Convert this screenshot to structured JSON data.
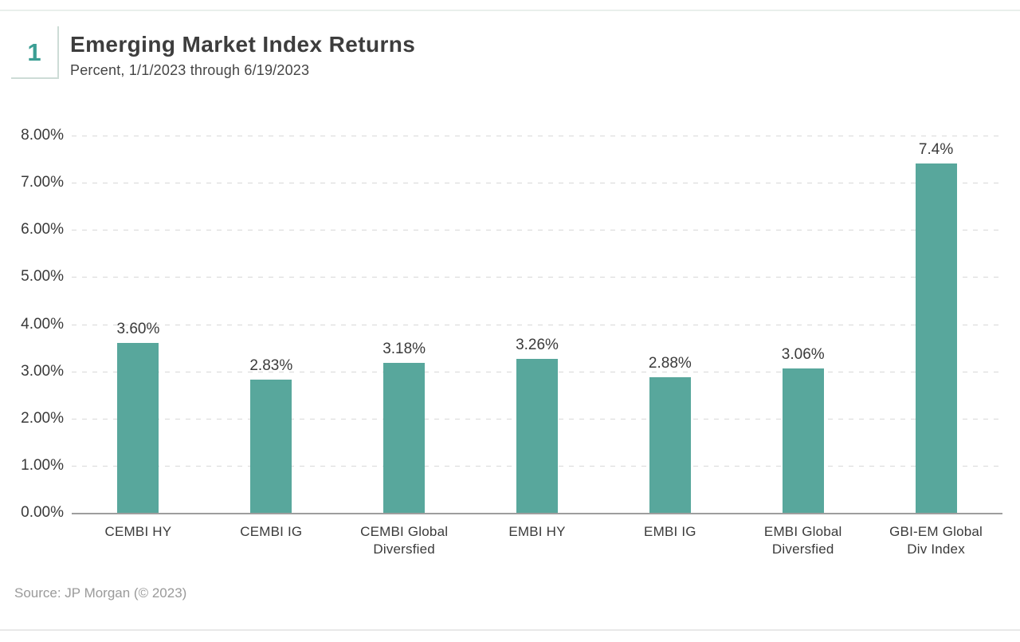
{
  "header": {
    "figure_number": "1",
    "title": "Emerging Market Index Returns",
    "subtitle": "Percent, 1/1/2023 through 6/19/2023"
  },
  "footer": {
    "source": "Source: JP Morgan (© 2023)"
  },
  "colors": {
    "bar": "#58a79c",
    "badge_number": "#3b9e94",
    "badge_border": "#cddcd6",
    "gridline": "#d8d8d8",
    "baseline": "#9e9e9e",
    "text": "#3d3d3d",
    "source_text": "#9a9a9a"
  },
  "chart_data": {
    "type": "bar",
    "title": "Emerging Market Index Returns",
    "subtitle": "Percent, 1/1/2023 through 6/19/2023",
    "categories": [
      "CEMBI HY",
      "CEMBI IG",
      "CEMBI Global\nDiversfied",
      "EMBI HY",
      "EMBI IG",
      "EMBI Global\nDiversfied",
      "GBI-EM Global\nDiv Index"
    ],
    "values": [
      3.6,
      2.83,
      3.18,
      3.26,
      2.88,
      3.06,
      7.4
    ],
    "value_labels": [
      "3.60%",
      "2.83%",
      "3.18%",
      "3.26%",
      "2.88%",
      "3.06%",
      "7.4%"
    ],
    "xlabel": "",
    "ylabel": "",
    "ylim": [
      0,
      8
    ],
    "ytick_step": 1,
    "ytick_labels": [
      "0.00%",
      "1.00%",
      "2.00%",
      "3.00%",
      "4.00%",
      "5.00%",
      "6.00%",
      "7.00%",
      "8.00%"
    ],
    "grid": "horizontal-dashed",
    "legend_position": "none",
    "bar_color": "#58a79c",
    "source": "Source: JP Morgan (© 2023)"
  }
}
